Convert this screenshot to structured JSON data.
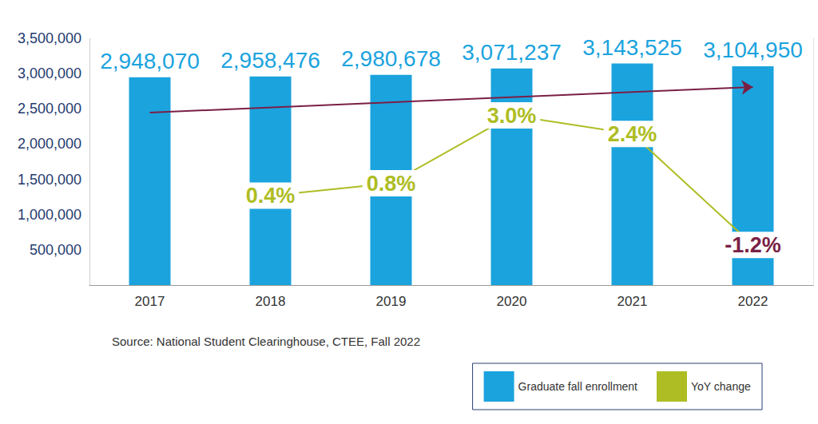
{
  "chart_data": {
    "type": "bar",
    "categories": [
      "2017",
      "2018",
      "2019",
      "2020",
      "2021",
      "2022"
    ],
    "series": [
      {
        "name": "Graduate fall enrollment",
        "type": "bar",
        "color": "#1ba3de",
        "values": [
          2948070,
          2958476,
          2980678,
          3071237,
          3143525,
          3104950
        ],
        "value_labels": [
          "2,948,070",
          "2,958,476",
          "2,980,678",
          "3,071,237",
          "3,143,525",
          "3,104,950"
        ]
      },
      {
        "name": "YoY change",
        "type": "line",
        "axis": "y2",
        "color": "#aebd24",
        "colors": [
          "#aebd24",
          "#aebd24",
          "#aebd24",
          "#aebd24",
          "#aebd24",
          "#7a1f45"
        ],
        "values": [
          null,
          0.4,
          0.8,
          3.0,
          2.4,
          -1.2
        ],
        "value_labels": [
          null,
          "0.4%",
          "0.8%",
          "3.0%",
          "2.4%",
          "-1.2%"
        ]
      }
    ],
    "trend_line": {
      "start": 2447000,
      "end": 2810000,
      "color": "#7a1f45"
    },
    "ylim": [
      0,
      3500000
    ],
    "yticks": [
      {
        "value": 500000,
        "label": "500,000"
      },
      {
        "value": 1000000,
        "label": "1,000,000"
      },
      {
        "value": 1500000,
        "label": "1,500,000"
      },
      {
        "value": 2000000,
        "label": "2,000,000"
      },
      {
        "value": 2500000,
        "label": "2,500,000"
      },
      {
        "value": 3000000,
        "label": "3,000,000"
      },
      {
        "value": 3500000,
        "label": "3,500,000"
      }
    ],
    "y2lim": [
      -2.5,
      5.5
    ],
    "y2ticks": [],
    "grid": false,
    "data_labels": true,
    "legend": "lower right",
    "source": "Source: National Student Clearinghouse, CTEE, Fall 2022"
  }
}
